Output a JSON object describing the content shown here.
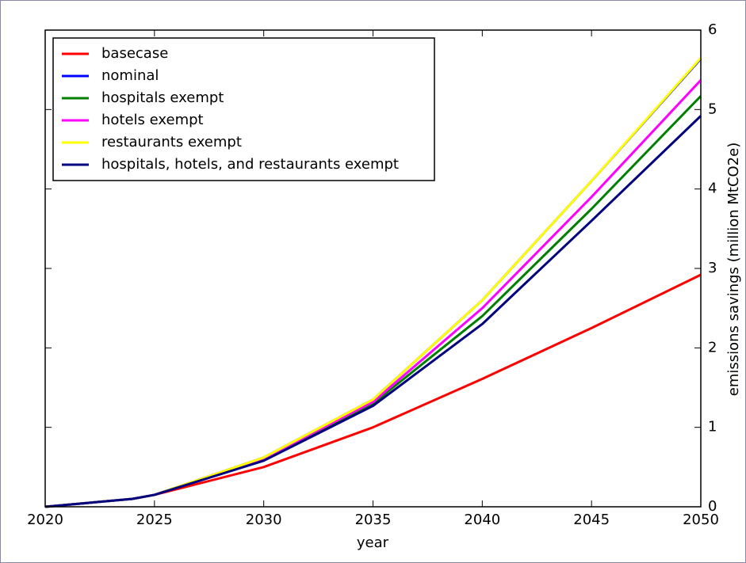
{
  "chart_data": {
    "type": "line",
    "x": [
      2020,
      2022,
      2024,
      2025,
      2030,
      2035,
      2040,
      2045,
      2050
    ],
    "series": [
      {
        "name": "basecase",
        "color": "#ff0000",
        "values": [
          0,
          0.05,
          0.1,
          0.15,
          0.5,
          1.0,
          1.61,
          2.25,
          2.92
        ]
      },
      {
        "name": "nominal",
        "color": "#0000ff",
        "values": [
          0,
          0.05,
          0.1,
          0.15,
          0.62,
          1.35,
          2.6,
          4.1,
          5.64
        ]
      },
      {
        "name": "hospitals exempt",
        "color": "#008000",
        "values": [
          0,
          0.05,
          0.1,
          0.15,
          0.6,
          1.3,
          2.4,
          3.75,
          5.17
        ]
      },
      {
        "name": "hotels exempt",
        "color": "#ff00ff",
        "values": [
          0,
          0.05,
          0.1,
          0.15,
          0.61,
          1.32,
          2.5,
          3.9,
          5.37
        ]
      },
      {
        "name": "restaurants exempt",
        "color": "#ffff00",
        "values": [
          0,
          0.05,
          0.1,
          0.15,
          0.62,
          1.35,
          2.6,
          4.1,
          5.65
        ]
      },
      {
        "name": "hospitals, hotels, and restaurants exempt",
        "color": "#000080",
        "values": [
          0,
          0.05,
          0.1,
          0.15,
          0.58,
          1.27,
          2.3,
          3.6,
          4.92
        ]
      }
    ],
    "xlabel": "year",
    "ylabel": "emissions savings (million MtCO2e)",
    "xlim": [
      2020,
      2050
    ],
    "xticks": [
      2020,
      2025,
      2030,
      2035,
      2040,
      2045,
      2050
    ],
    "ylim": [
      0,
      6
    ],
    "yticks": [
      0,
      1,
      2,
      3,
      4,
      5,
      6
    ],
    "legend": "upper left"
  }
}
